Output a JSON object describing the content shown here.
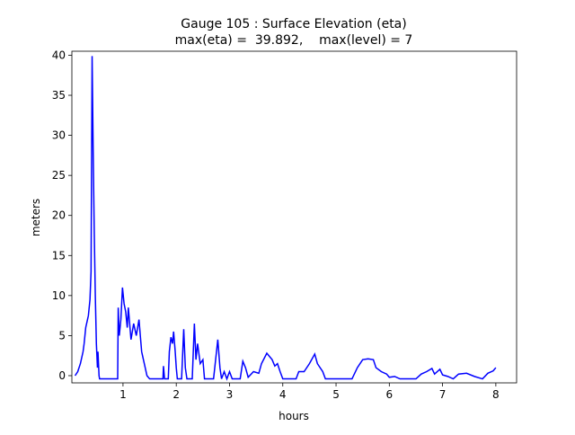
{
  "chart_data": {
    "type": "line",
    "title": "Gauge 105 : Surface Elevation (eta)",
    "subtitle": "max(eta) =  39.892,    max(level) = 7",
    "x_label": "hours",
    "y_label": "meters",
    "xlim": [
      0.04,
      8.39
    ],
    "ylim": [
      -0.9,
      40.5
    ],
    "xticks": [
      1,
      2,
      3,
      4,
      5,
      6,
      7,
      8
    ],
    "yticks": [
      0,
      5,
      10,
      15,
      20,
      25,
      30,
      35,
      40
    ],
    "series": [
      {
        "color": "#0000ff",
        "x": [
          0.1,
          0.15,
          0.2,
          0.25,
          0.27,
          0.3,
          0.35,
          0.38,
          0.4,
          0.42,
          0.44,
          0.46,
          0.48,
          0.5,
          0.52,
          0.53,
          0.55,
          0.56,
          0.9,
          0.91,
          0.93,
          0.96,
          0.99,
          1.02,
          1.05,
          1.08,
          1.1,
          1.15,
          1.2,
          1.25,
          1.3,
          1.35,
          1.4,
          1.45,
          1.5,
          1.75,
          1.76,
          1.78,
          1.85,
          1.87,
          1.9,
          1.93,
          1.95,
          1.98,
          2.0,
          2.02,
          2.1,
          2.14,
          2.17,
          2.2,
          2.3,
          2.34,
          2.37,
          2.4,
          2.45,
          2.5,
          2.53,
          2.7,
          2.78,
          2.82,
          2.85,
          2.9,
          2.95,
          3.0,
          3.05,
          3.2,
          3.25,
          3.3,
          3.35,
          3.45,
          3.55,
          3.6,
          3.7,
          3.8,
          3.85,
          3.9,
          3.95,
          4.0,
          4.25,
          4.3,
          4.4,
          4.5,
          4.6,
          4.65,
          4.75,
          4.8,
          5.3,
          5.4,
          5.5,
          5.6,
          5.7,
          5.75,
          5.85,
          5.95,
          6.0,
          6.1,
          6.2,
          6.5,
          6.6,
          6.7,
          6.8,
          6.85,
          6.95,
          7.0,
          7.1,
          7.2,
          7.3,
          7.45,
          7.6,
          7.75,
          7.85,
          7.95,
          8.0
        ],
        "values": [
          0,
          0.5,
          1.5,
          3,
          4,
          6,
          7.5,
          9.5,
          13,
          39.9,
          28,
          18,
          10,
          4,
          1,
          3,
          0,
          -0.4,
          -0.4,
          8.5,
          5,
          7,
          11,
          9,
          8,
          6,
          8.5,
          4.5,
          6.5,
          5,
          7,
          3,
          1.5,
          0,
          -0.4,
          -0.4,
          1.2,
          -0.4,
          -0.4,
          3,
          4.8,
          4,
          5.5,
          3,
          1,
          -0.4,
          -0.4,
          5.8,
          1,
          -0.4,
          -0.4,
          6.5,
          2,
          4,
          1.5,
          2,
          -0.4,
          -0.4,
          4.5,
          1,
          -0.4,
          0.5,
          -0.4,
          0.5,
          -0.4,
          -0.4,
          1.8,
          1,
          -0.2,
          0.5,
          0.3,
          1.5,
          2.8,
          2,
          1.2,
          1.5,
          0.5,
          -0.4,
          -0.4,
          0.5,
          0.5,
          1.5,
          2.7,
          1.5,
          0.5,
          -0.4,
          -0.4,
          1,
          2,
          2.1,
          2,
          1,
          0.5,
          0.2,
          -0.2,
          -0.1,
          -0.4,
          -0.4,
          0.2,
          0.5,
          0.9,
          0.2,
          0.8,
          0.1,
          -0.1,
          -0.4,
          0.2,
          0.3,
          -0.1,
          -0.4,
          0.3,
          0.6,
          1.0
        ]
      }
    ]
  }
}
